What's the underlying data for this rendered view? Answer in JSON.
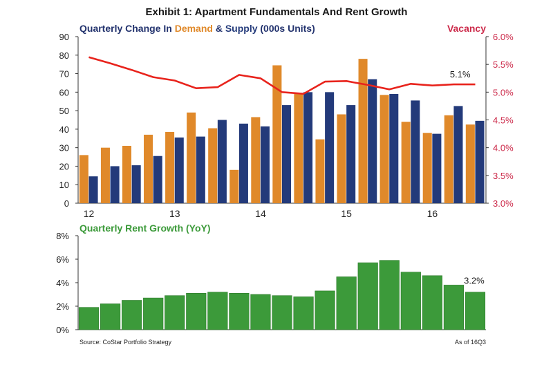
{
  "title": "Exhibit 1: Apartment Fundamentals And Rent Growth",
  "top_chart": {
    "subtitle_parts": {
      "prefix": "Quarterly Change In ",
      "demand": "Demand",
      "amp": " & ",
      "supply": "Supply",
      "suffix": " (000s Units)"
    },
    "right_axis_title": "Vacancy",
    "vacancy_label": "5.1%",
    "colors": {
      "demand": "#e0892a",
      "supply": "#233a7a",
      "vacancy": "#e8231c",
      "right_axis": "#cc2a4a"
    }
  },
  "bottom_chart": {
    "subtitle": "Quarterly Rent Growth (YoY)",
    "last_label": "3.2%",
    "colors": {
      "bar": "#3c9a3a",
      "bar_edge": "#2d7a2b",
      "subtitle": "#3c9a3a"
    }
  },
  "footer": {
    "source": "Source: CoStar Portfolio Strategy",
    "asof": "As of 16Q3"
  },
  "chart_data": [
    {
      "type": "bar",
      "title": "Quarterly Change In Demand & Supply (000s Units)",
      "x_tick_labels": [
        "12",
        "13",
        "14",
        "15",
        "16"
      ],
      "ylim": [
        0,
        90
      ],
      "y_ticks": [
        "0",
        "10",
        "20",
        "30",
        "40",
        "50",
        "60",
        "70",
        "80",
        "90"
      ],
      "series": [
        {
          "name": "Demand",
          "values": [
            26,
            30,
            31,
            37,
            38.5,
            49,
            40.5,
            18,
            46.5,
            74.5,
            59.5,
            34.5,
            48,
            78,
            58.5,
            44,
            38,
            47.5,
            42.5
          ]
        },
        {
          "name": "Supply",
          "values": [
            14.5,
            20,
            20.5,
            25.5,
            35.5,
            36,
            45,
            43,
            41.5,
            53,
            60,
            60,
            53,
            67,
            59,
            55.5,
            37.5,
            52.5,
            44.5
          ]
        }
      ],
      "secondary": {
        "type": "line",
        "name": "Vacancy",
        "ylim": [
          3.0,
          6.0
        ],
        "y_ticks": [
          "3.0%",
          "3.5%",
          "4.0%",
          "4.5%",
          "5.0%",
          "5.5%",
          "6.0%"
        ],
        "values": [
          5.63,
          5.52,
          5.4,
          5.27,
          5.21,
          5.07,
          5.09,
          5.31,
          5.25,
          5.0,
          4.97,
          5.19,
          5.2,
          5.13,
          5.05,
          5.15,
          5.12,
          5.14,
          5.14
        ]
      },
      "grid": false
    },
    {
      "type": "bar",
      "title": "Quarterly Rent Growth (YoY)",
      "ylim": [
        0,
        8
      ],
      "y_ticks": [
        "0%",
        "2%",
        "4%",
        "6%",
        "8%"
      ],
      "values": [
        1.9,
        2.2,
        2.5,
        2.7,
        2.9,
        3.1,
        3.2,
        3.1,
        3.0,
        2.9,
        2.8,
        3.3,
        4.5,
        5.7,
        5.9,
        4.9,
        4.6,
        3.8,
        3.2
      ],
      "grid": false
    }
  ]
}
